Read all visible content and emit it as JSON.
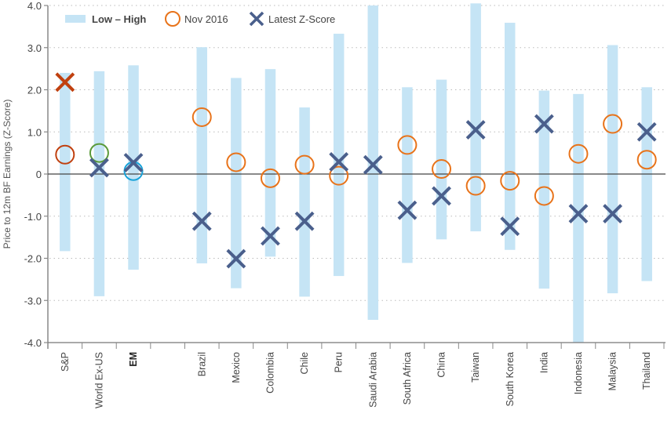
{
  "chart_data": {
    "type": "range-dot",
    "title": "",
    "xlabel": "",
    "ylabel": "Price to 12m BF Earnings (Z-Score)",
    "ylim": [
      -4.0,
      4.0
    ],
    "yticks": [
      {
        "value": 4.0,
        "label": "4.0"
      },
      {
        "value": 3.0,
        "label": "3.0"
      },
      {
        "value": 2.0,
        "label": "2.0"
      },
      {
        "value": 1.0,
        "label": "1.0"
      },
      {
        "value": 0,
        "label": "0"
      },
      {
        "value": -1.0,
        "label": "-1.0"
      },
      {
        "value": -2.0,
        "label": "-2.0"
      },
      {
        "value": -3.0,
        "label": "-3.0"
      },
      {
        "value": -4.0,
        "label": "-4.0"
      }
    ],
    "grid": true,
    "legend_position": "top-left",
    "legend": [
      {
        "key": "range",
        "label": "Low – High",
        "color": "#c5e4f5"
      },
      {
        "key": "nov2016",
        "label": "Nov 2016",
        "color": "#e8731a"
      },
      {
        "key": "latest",
        "label": "Latest Z-Score",
        "color": "#4a5f8c"
      }
    ],
    "categories": [
      "S&P",
      "World Ex-US",
      "EM",
      "",
      "Brazil",
      "Mexico",
      "Colombia",
      "Chile",
      "Peru",
      "Saudi Arabia",
      "South Africa",
      "China",
      "Taiwan",
      "South Korea",
      "India",
      "Indonesia",
      "Malaysia",
      "Thailand"
    ],
    "bold_categories": [
      "EM"
    ],
    "series": [
      {
        "name": "Low",
        "values": [
          -1.83,
          -2.9,
          -2.27,
          null,
          -2.12,
          -2.71,
          -1.96,
          -2.91,
          -2.42,
          -3.46,
          -2.11,
          -1.55,
          -1.36,
          -1.8,
          -2.72,
          -4.0,
          -2.83,
          -2.54
        ]
      },
      {
        "name": "High",
        "values": [
          2.4,
          2.44,
          2.58,
          null,
          3.01,
          2.28,
          2.49,
          1.58,
          3.33,
          4.0,
          2.06,
          2.24,
          4.05,
          3.59,
          1.98,
          1.9,
          3.06,
          2.06
        ]
      },
      {
        "name": "Nov 2016",
        "values": [
          0.46,
          0.5,
          0.07,
          null,
          1.35,
          0.28,
          -0.1,
          0.22,
          -0.04,
          null,
          0.69,
          0.12,
          -0.28,
          -0.16,
          -0.52,
          0.48,
          1.19,
          0.34
        ]
      },
      {
        "name": "Latest Z-Score",
        "values": [
          2.18,
          0.15,
          0.27,
          null,
          -1.12,
          -2.01,
          -1.47,
          -1.12,
          0.29,
          0.22,
          -0.86,
          -0.52,
          1.05,
          -1.24,
          1.19,
          -0.94,
          -0.94,
          1.0
        ]
      }
    ],
    "marker_color_overrides": {
      "Nov 2016": {
        "S&P": "#c0400f",
        "World Ex-US": "#5a9a3a",
        "EM": "#1aa3d9"
      },
      "Latest Z-Score": {
        "S&P": "#c0400f"
      }
    },
    "colors": {
      "range": "#c5e4f5",
      "nov2016": "#e8731a",
      "latest": "#4a5f8c",
      "axis": "#555555",
      "zero_line": "#444444",
      "grid": "#bbbbbb"
    }
  }
}
